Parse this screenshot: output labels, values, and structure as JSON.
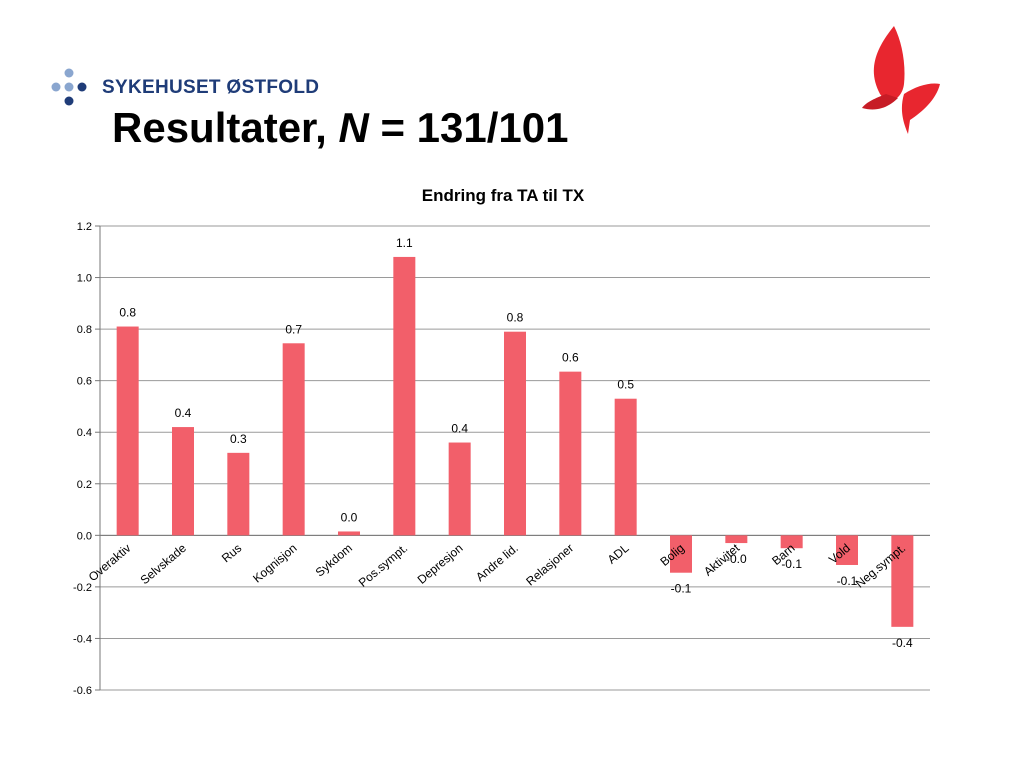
{
  "header": {
    "org_name": "SYKEHUSET ØSTFOLD",
    "title_prefix": "Resultater, ",
    "title_n": "N",
    "title_suffix": " = 131/101"
  },
  "chart_data": {
    "type": "bar",
    "title": "Endring fra TA til TX",
    "categories": [
      "Overaktiv",
      "Selvskade",
      "Rus",
      "Kognisjon",
      "Sykdom",
      "Pos.sympt.",
      "Depresjon",
      "Andre lid.",
      "Relasjoner",
      "ADL",
      "Bolig",
      "Aktivitet",
      "Barn",
      "Vold",
      "Neg.sympt."
    ],
    "values": [
      0.81,
      0.42,
      0.32,
      0.745,
      0.015,
      1.08,
      0.36,
      0.79,
      0.635,
      0.53,
      -0.145,
      -0.03,
      -0.05,
      -0.115,
      -0.355
    ],
    "data_labels": [
      "0.8",
      "0.4",
      "0.3",
      "0.7",
      "0.0",
      "1.1",
      "0.4",
      "0.8",
      "0.6",
      "0.5",
      "-0.1",
      "-0.0",
      "-0.1",
      "-0.1",
      "-0.4"
    ],
    "ylim": [
      -0.6,
      1.2
    ],
    "yticks": [
      "1.2",
      "1.0",
      "0.8",
      "0.6",
      "0.4",
      "0.2",
      "0.0",
      "-0.2",
      "-0.4",
      "-0.6"
    ],
    "ytick_values": [
      1.2,
      1.0,
      0.8,
      0.6,
      0.4,
      0.2,
      0.0,
      -0.2,
      -0.4,
      -0.6
    ],
    "grid": true,
    "bar_color": "#f25f6a"
  }
}
